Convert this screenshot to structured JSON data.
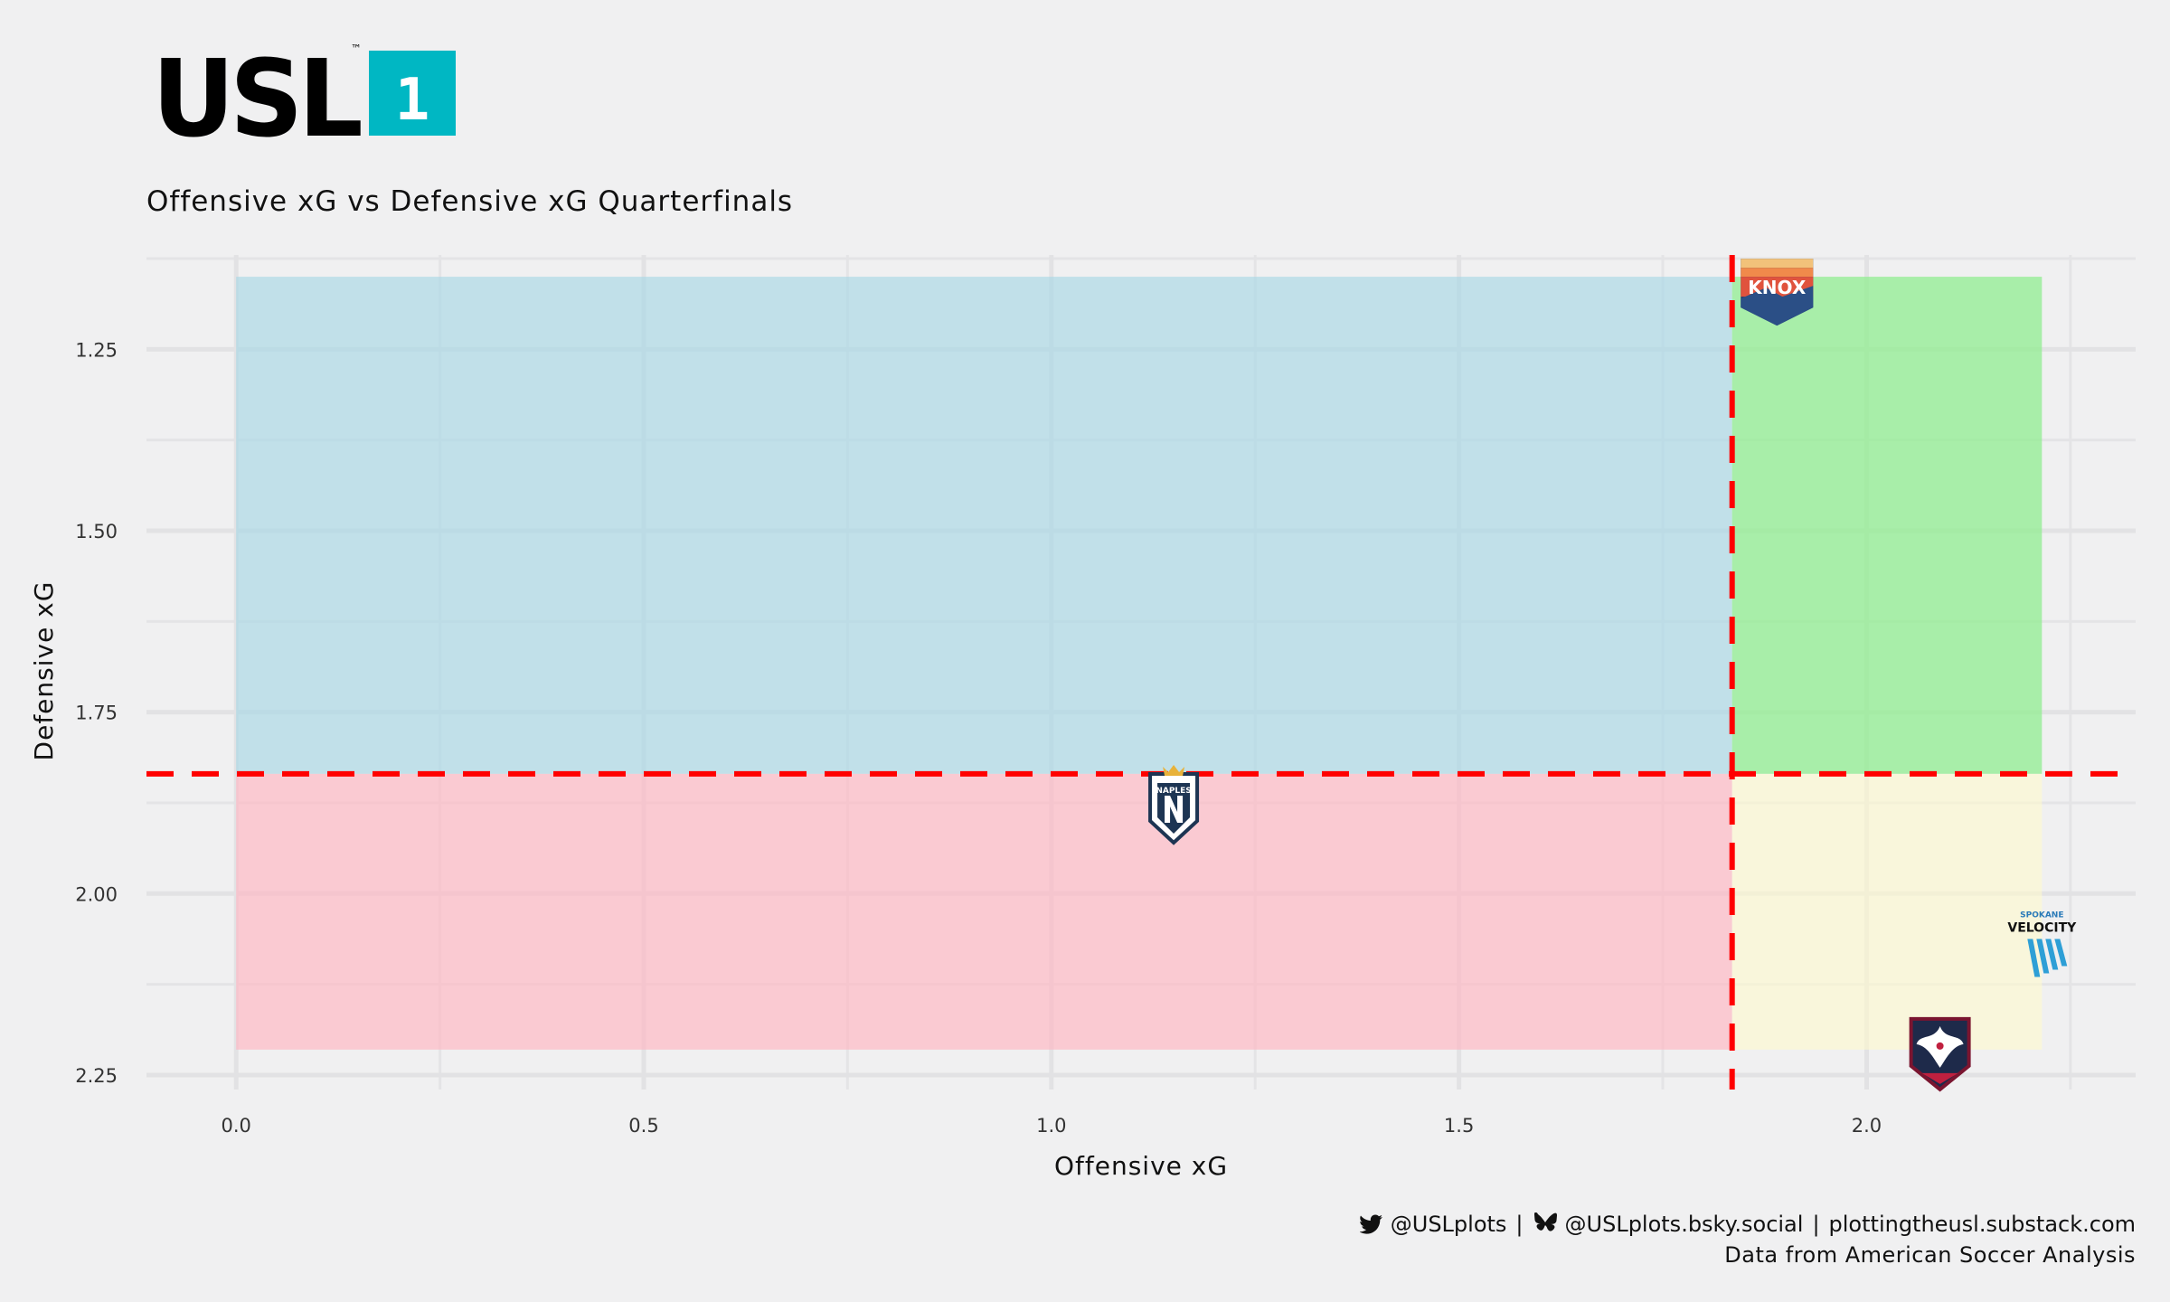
{
  "header": {
    "logo_text": "USL",
    "logo_badge": "1",
    "logo_tm": "™"
  },
  "colors": {
    "background": "#f0f0f1",
    "quadrant_top_left": "#add8e6",
    "quadrant_top_right": "#90ee90",
    "quadrant_bottom_left": "#ffb6c1",
    "quadrant_bottom_right": "#fffacd",
    "reference_line": "#ff0000",
    "logo_badge": "#00b7c3"
  },
  "chart_data": {
    "type": "scatter",
    "title": "Offensive xG vs Defensive xG Quarterfinals",
    "xlabel": "Offensive xG",
    "ylabel": "Defensive xG",
    "xlim": [
      -0.11,
      2.33
    ],
    "ylim": [
      1.12,
      2.27
    ],
    "y_reversed": true,
    "x_ticks": [
      0.0,
      0.5,
      1.0,
      1.5,
      2.0
    ],
    "x_tick_labels": [
      "0.0",
      "0.5",
      "1.0",
      "1.5",
      "2.0"
    ],
    "y_ticks": [
      1.25,
      1.5,
      1.75,
      2.0,
      2.25
    ],
    "y_tick_labels": [
      "1.25",
      "1.50",
      "1.75",
      "2.00",
      "2.25"
    ],
    "grid": true,
    "reference_lines": {
      "x_mean": 1.835,
      "y_mean": 1.835
    },
    "quadrant_extent": {
      "x": [
        0.0,
        2.215
      ],
      "y": [
        1.15,
        2.215
      ]
    },
    "points": [
      {
        "team": "One Knoxville",
        "logo_text": "KNOX",
        "x": 1.89,
        "y": 1.17,
        "icon": "knoxville-crest-icon"
      },
      {
        "team": "Naples",
        "logo_text": "NAPLES",
        "x": 1.15,
        "y": 1.88,
        "icon": "naples-crest-icon"
      },
      {
        "team": "Spokane Velocity",
        "logo_text": "VELOCITY",
        "logo_subtext": "SPOKANE",
        "x": 2.215,
        "y": 2.07,
        "icon": "spokane-velocity-icon"
      },
      {
        "team": "South Georgia Tormenta",
        "x": 2.09,
        "y": 2.22,
        "icon": "tormenta-crest-icon"
      }
    ]
  },
  "footer": {
    "twitter_icon": "twitter-bird-icon",
    "twitter_handle": "@USLplots",
    "separator": "|",
    "bluesky_icon": "bluesky-butterfly-icon",
    "bluesky_handle": "@USLplots.bsky.social",
    "website": "plottingtheusl.substack.com",
    "source": "Data from American Soccer Analysis"
  }
}
